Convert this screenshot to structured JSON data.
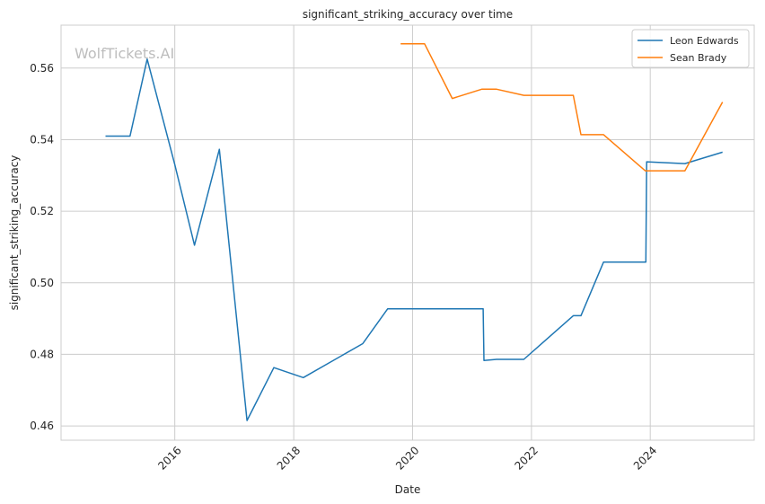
{
  "watermark": "WolfTickets.AI",
  "chart_data": {
    "type": "line",
    "title": "significant_striking_accuracy over time",
    "xlabel": "Date",
    "ylabel": "significant_striking_accuracy",
    "xlim": [
      "2014-02-01",
      "2025-10-01"
    ],
    "ylim": [
      0.456,
      0.572
    ],
    "x_ticks": [
      "2016-01-01",
      "2018-01-01",
      "2020-01-01",
      "2022-01-01",
      "2024-01-01"
    ],
    "x_tick_labels": [
      "2016",
      "2018",
      "2020",
      "2022",
      "2024"
    ],
    "y_ticks": [
      0.46,
      0.48,
      0.5,
      0.52,
      0.54,
      0.56
    ],
    "y_tick_labels": [
      "0.46",
      "0.48",
      "0.50",
      "0.52",
      "0.54",
      "0.56"
    ],
    "grid": true,
    "legend_position": "top-right",
    "series": [
      {
        "name": "Leon Edwards",
        "color": "#1f77b4",
        "points": [
          [
            "2014-11-01",
            0.541
          ],
          [
            "2015-04-01",
            0.541
          ],
          [
            "2015-07-15",
            0.5625
          ],
          [
            "2016-01-01",
            0.533
          ],
          [
            "2016-05-01",
            0.5105
          ],
          [
            "2016-10-01",
            0.5373
          ],
          [
            "2017-03-20",
            0.4615
          ],
          [
            "2017-09-01",
            0.4763
          ],
          [
            "2018-03-01",
            0.4735
          ],
          [
            "2019-03-01",
            0.483
          ],
          [
            "2019-08-01",
            0.4927
          ],
          [
            "2020-06-01",
            0.4927
          ],
          [
            "2021-03-10",
            0.4927
          ],
          [
            "2021-03-15",
            0.4783
          ],
          [
            "2021-06-01",
            0.4786
          ],
          [
            "2021-11-15",
            0.4786
          ],
          [
            "2022-09-15",
            0.4908
          ],
          [
            "2022-11-01",
            0.4908
          ],
          [
            "2023-03-20",
            0.5058
          ],
          [
            "2023-12-05",
            0.5058
          ],
          [
            "2023-12-10",
            0.5338
          ],
          [
            "2024-08-01",
            0.5333
          ],
          [
            "2025-03-20",
            0.5365
          ]
        ]
      },
      {
        "name": "Sean Brady",
        "color": "#ff7f0e",
        "points": [
          [
            "2019-10-20",
            0.5668
          ],
          [
            "2020-03-15",
            0.5668
          ],
          [
            "2020-09-01",
            0.5515
          ],
          [
            "2021-03-01",
            0.5541
          ],
          [
            "2021-06-01",
            0.5541
          ],
          [
            "2021-11-15",
            0.5524
          ],
          [
            "2022-05-15",
            0.5524
          ],
          [
            "2022-09-15",
            0.5524
          ],
          [
            "2022-11-01",
            0.5414
          ],
          [
            "2023-03-20",
            0.5414
          ],
          [
            "2023-12-01",
            0.5313
          ],
          [
            "2024-08-01",
            0.5313
          ],
          [
            "2025-03-20",
            0.5505
          ]
        ]
      }
    ]
  }
}
